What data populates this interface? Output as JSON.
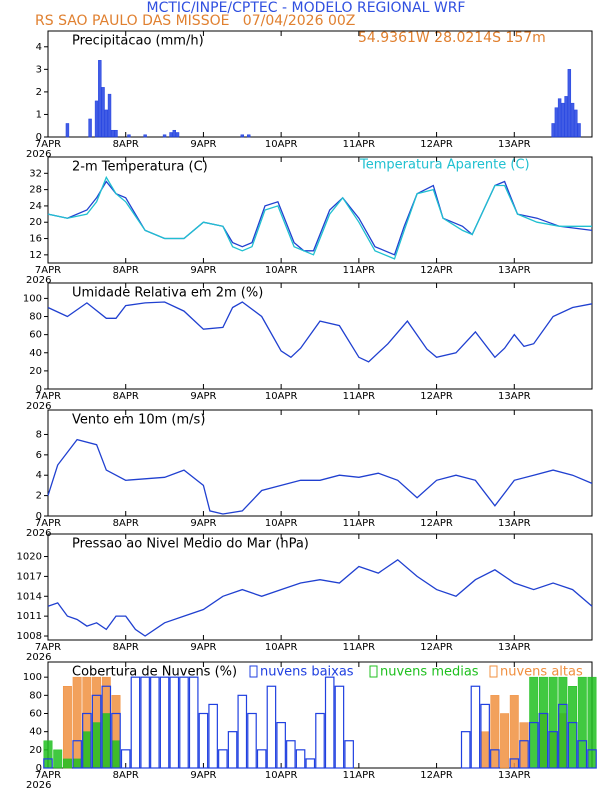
{
  "header": {
    "title": "MCTIC/INPE/CPTEC - MODELO REGIONAL WRF",
    "location": "RS SAO PAULO DAS MISSOE   07/04/2026 00Z",
    "coords": "54.9361W 28.0214S 157m"
  },
  "chart_data": [
    {
      "type": "bar",
      "title": "Precipitacao (mm/h)",
      "x_year": "2026",
      "x": [
        6,
        13,
        15,
        16,
        17,
        18,
        19,
        20,
        21,
        25,
        30,
        36,
        38,
        39,
        40,
        60,
        62,
        156,
        157,
        158,
        159,
        160,
        161,
        162,
        163,
        164
      ],
      "series": [
        {
          "color": "#2040e0",
          "values": [
            0.6,
            0.8,
            1.6,
            3.4,
            2.2,
            1.2,
            1.9,
            0.3,
            0.3,
            0.1,
            0.1,
            0.1,
            0.2,
            0.3,
            0.2,
            0.1,
            0.1,
            0.6,
            1.3,
            1.7,
            1.5,
            1.8,
            3.0,
            1.5,
            1.2,
            0.6
          ]
        }
      ],
      "xlim": [
        0,
        168
      ],
      "xticks": [
        {
          "value": 0,
          "label": "7APR"
        },
        {
          "value": 24,
          "label": "8APR"
        },
        {
          "value": 48,
          "label": "9APR"
        },
        {
          "value": 72,
          "label": "10APR"
        },
        {
          "value": 96,
          "label": "11APR"
        },
        {
          "value": 120,
          "label": "12APR"
        },
        {
          "value": 144,
          "label": "13APR"
        }
      ],
      "ylim": [
        0,
        4.7
      ],
      "yticks": [
        0,
        1,
        2,
        3,
        4
      ]
    },
    {
      "type": "line",
      "title": "2-m Temperatura (C)",
      "x_year": "2026",
      "x": [
        0,
        6,
        12,
        15,
        18,
        21,
        24,
        30,
        36,
        42,
        48,
        54,
        57,
        60,
        63,
        67,
        71,
        76,
        79,
        82,
        87,
        91,
        96,
        101,
        107,
        110,
        114,
        119,
        122,
        128,
        131,
        138,
        141,
        145,
        151,
        158,
        168
      ],
      "series": [
        {
          "color": "#2040d0",
          "values": [
            22,
            21,
            23,
            26,
            30,
            27,
            26,
            18,
            16,
            16,
            20,
            19,
            15,
            14,
            15,
            24,
            25,
            15,
            13,
            13,
            23,
            26,
            21,
            14,
            12,
            19,
            27,
            29,
            21,
            19,
            17,
            29,
            30,
            22,
            21,
            19,
            18
          ]
        },
        {
          "name": "Temperatura Aparente (C)",
          "color": "#20c0d0",
          "values": [
            22,
            21,
            22,
            25,
            31,
            27,
            25,
            18,
            16,
            16,
            20,
            19,
            14,
            13,
            14,
            23,
            24,
            14,
            13,
            12,
            22,
            26,
            20,
            13,
            11,
            18,
            27,
            28,
            21,
            18,
            17,
            29,
            29,
            22,
            20,
            19,
            19
          ]
        }
      ],
      "xlim": [
        0,
        168
      ],
      "xticks": [
        {
          "value": 0,
          "label": "7APR"
        },
        {
          "value": 24,
          "label": "8APR"
        },
        {
          "value": 48,
          "label": "9APR"
        },
        {
          "value": 72,
          "label": "10APR"
        },
        {
          "value": 96,
          "label": "11APR"
        },
        {
          "value": 120,
          "label": "12APR"
        },
        {
          "value": 144,
          "label": "13APR"
        }
      ],
      "ylim": [
        10,
        36
      ],
      "yticks": [
        12,
        16,
        20,
        24,
        28,
        32
      ]
    },
    {
      "type": "line",
      "title": "Umidade Relativa em 2m (%)",
      "x_year": "2026",
      "x": [
        0,
        3,
        6,
        12,
        18,
        21,
        24,
        30,
        36,
        42,
        48,
        54,
        57,
        60,
        66,
        72,
        75,
        78,
        84,
        90,
        96,
        99,
        105,
        111,
        117,
        120,
        126,
        132,
        138,
        141,
        144,
        147,
        150,
        156,
        162,
        168
      ],
      "series": [
        {
          "color": "#2040d0",
          "values": [
            90,
            85,
            80,
            95,
            78,
            78,
            92,
            95,
            96,
            86,
            66,
            68,
            90,
            96,
            80,
            42,
            35,
            45,
            75,
            70,
            35,
            30,
            50,
            75,
            44,
            35,
            40,
            63,
            35,
            45,
            60,
            47,
            50,
            80,
            90,
            94
          ]
        }
      ],
      "xlim": [
        0,
        168
      ],
      "xticks": [
        {
          "value": 0,
          "label": "7APR"
        },
        {
          "value": 24,
          "label": "8APR"
        },
        {
          "value": 48,
          "label": "9APR"
        },
        {
          "value": 72,
          "label": "10APR"
        },
        {
          "value": 96,
          "label": "11APR"
        },
        {
          "value": 120,
          "label": "12APR"
        },
        {
          "value": 144,
          "label": "13APR"
        }
      ],
      "ylim": [
        0,
        117
      ],
      "yticks": [
        0,
        20,
        40,
        60,
        80,
        100
      ]
    },
    {
      "type": "line",
      "title": "Vento em 10m (m/s)",
      "x_year": "2026",
      "x": [
        0,
        3,
        9,
        15,
        18,
        24,
        36,
        42,
        48,
        50,
        54,
        60,
        66,
        72,
        78,
        84,
        90,
        96,
        102,
        108,
        114,
        120,
        126,
        132,
        138,
        144,
        150,
        156,
        162,
        168
      ],
      "series": [
        {
          "color": "#2040d0",
          "values": [
            2,
            5,
            7.5,
            7,
            4.5,
            3.5,
            3.8,
            4.5,
            3,
            0.5,
            0.2,
            0.5,
            2.5,
            3,
            3.5,
            3.5,
            4,
            3.8,
            4.2,
            3.5,
            1.8,
            3.5,
            4,
            3.5,
            1,
            3.5,
            4,
            4.5,
            4,
            3.2
          ]
        }
      ],
      "xlim": [
        0,
        168
      ],
      "xticks": [
        {
          "value": 0,
          "label": "7APR"
        },
        {
          "value": 24,
          "label": "8APR"
        },
        {
          "value": 48,
          "label": "9APR"
        },
        {
          "value": 72,
          "label": "10APR"
        },
        {
          "value": 96,
          "label": "11APR"
        },
        {
          "value": 120,
          "label": "12APR"
        },
        {
          "value": 144,
          "label": "13APR"
        }
      ],
      "ylim": [
        0,
        10.4
      ],
      "yticks": [
        0,
        2,
        4,
        6,
        8
      ]
    },
    {
      "type": "line",
      "title": "Pressao ao Nivel Medio do Mar (hPa)",
      "x_year": "2026",
      "x": [
        0,
        3,
        6,
        9,
        12,
        15,
        18,
        21,
        24,
        27,
        30,
        36,
        42,
        48,
        54,
        60,
        66,
        72,
        78,
        84,
        90,
        96,
        102,
        108,
        114,
        120,
        126,
        132,
        138,
        144,
        150,
        156,
        162,
        168
      ],
      "series": [
        {
          "color": "#2040d0",
          "values": [
            1012.5,
            1013,
            1011,
            1010.5,
            1009.5,
            1010,
            1009,
            1011,
            1011,
            1009,
            1008,
            1010,
            1011,
            1012,
            1014,
            1015,
            1014,
            1015,
            1016,
            1016.5,
            1016,
            1018.5,
            1017.5,
            1019.5,
            1017,
            1015,
            1014,
            1016.5,
            1018,
            1016,
            1015,
            1016,
            1015,
            1012.5
          ]
        }
      ],
      "xlim": [
        0,
        168
      ],
      "xticks": [
        {
          "value": 0,
          "label": "7APR"
        },
        {
          "value": 24,
          "label": "8APR"
        },
        {
          "value": 48,
          "label": "9APR"
        },
        {
          "value": 72,
          "label": "10APR"
        },
        {
          "value": 96,
          "label": "11APR"
        },
        {
          "value": 120,
          "label": "12APR"
        },
        {
          "value": 144,
          "label": "13APR"
        }
      ],
      "ylim": [
        1007.4,
        1023.4
      ],
      "yticks": [
        1008,
        1011,
        1014,
        1017,
        1020
      ]
    },
    {
      "type": "bar",
      "title": "Cobertura de Nuvens (%)",
      "x_year": "2026",
      "x": [
        0,
        3,
        6,
        9,
        12,
        15,
        18,
        21,
        24,
        27,
        30,
        33,
        36,
        39,
        42,
        45,
        48,
        51,
        54,
        57,
        60,
        63,
        66,
        69,
        72,
        75,
        78,
        81,
        84,
        87,
        90,
        93,
        96,
        99,
        102,
        105,
        108,
        111,
        114,
        117,
        120,
        123,
        126,
        129,
        132,
        135,
        138,
        141,
        144,
        147,
        150,
        153,
        156,
        159,
        162,
        165,
        168
      ],
      "series": [
        {
          "name": "nuvens altas",
          "color": "#f09040",
          "values": [
            0,
            0,
            90,
            100,
            100,
            100,
            100,
            80,
            0,
            0,
            0,
            0,
            0,
            0,
            0,
            0,
            0,
            0,
            0,
            0,
            0,
            0,
            0,
            0,
            0,
            0,
            0,
            0,
            0,
            0,
            0,
            0,
            0,
            0,
            0,
            0,
            0,
            0,
            0,
            0,
            0,
            0,
            0,
            0,
            0,
            40,
            80,
            60,
            80,
            50,
            0,
            60,
            40,
            60,
            0,
            0,
            0
          ]
        },
        {
          "name": "nuvens medias",
          "color": "#20c020",
          "values": [
            30,
            20,
            10,
            10,
            40,
            50,
            60,
            30,
            0,
            0,
            0,
            0,
            0,
            0,
            0,
            0,
            0,
            0,
            0,
            0,
            0,
            0,
            0,
            0,
            0,
            0,
            0,
            0,
            0,
            0,
            0,
            0,
            0,
            0,
            0,
            0,
            0,
            0,
            0,
            0,
            0,
            0,
            0,
            0,
            0,
            0,
            0,
            0,
            0,
            0,
            100,
            100,
            100,
            100,
            90,
            100,
            100
          ]
        },
        {
          "name": "nuvens baixas",
          "color": "#2040e0",
          "values": [
            10,
            0,
            0,
            30,
            60,
            80,
            90,
            60,
            20,
            100,
            100,
            100,
            100,
            100,
            100,
            100,
            60,
            70,
            20,
            40,
            80,
            60,
            20,
            90,
            50,
            30,
            20,
            10,
            60,
            100,
            90,
            30,
            0,
            0,
            0,
            0,
            0,
            0,
            0,
            0,
            0,
            0,
            0,
            40,
            90,
            70,
            20,
            0,
            10,
            30,
            50,
            60,
            40,
            70,
            50,
            30,
            20
          ]
        }
      ],
      "xlim": [
        0,
        168
      ],
      "xticks": [
        {
          "value": 0,
          "label": "7APR"
        },
        {
          "value": 24,
          "label": "8APR"
        },
        {
          "value": 48,
          "label": "9APR"
        },
        {
          "value": 72,
          "label": "10APR"
        },
        {
          "value": 96,
          "label": "11APR"
        },
        {
          "value": 120,
          "label": "12APR"
        },
        {
          "value": 144,
          "label": "13APR"
        }
      ],
      "ylim": [
        0,
        116.7
      ],
      "yticks": [
        0,
        20,
        40,
        60,
        80,
        100
      ]
    }
  ]
}
